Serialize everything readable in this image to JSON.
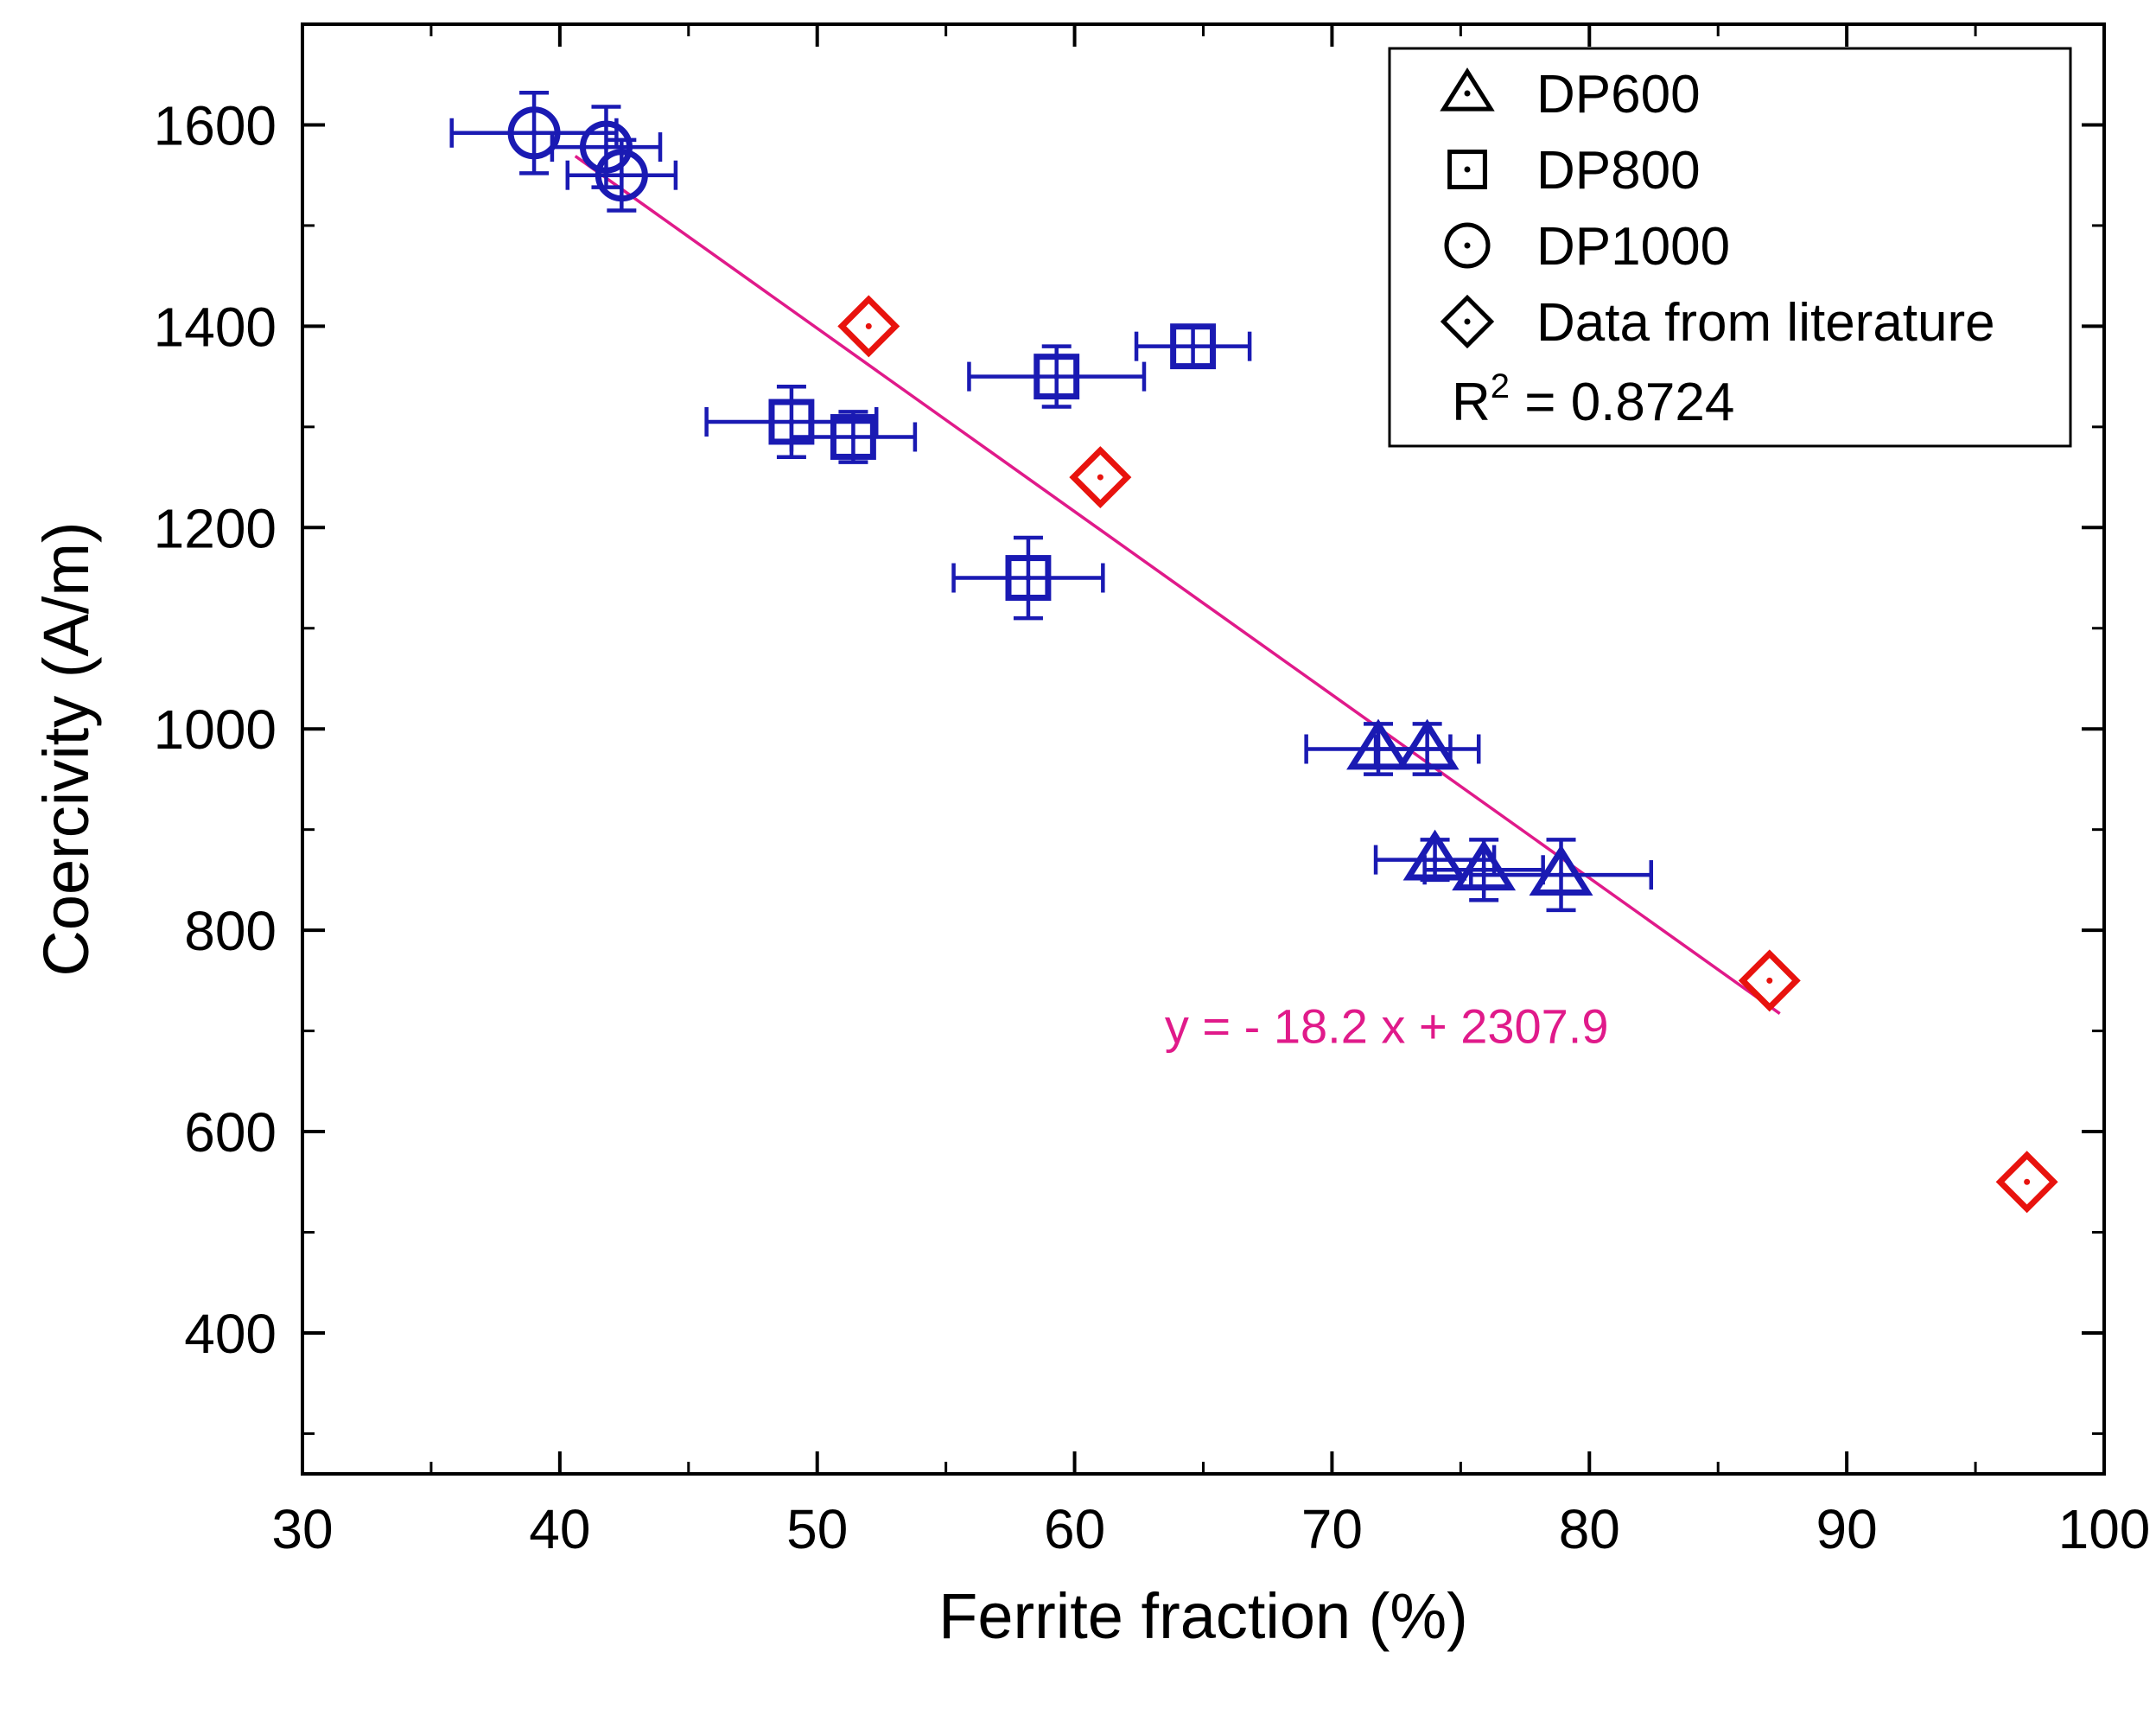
{
  "chart_data": {
    "type": "scatter",
    "title": "",
    "xlabel": "Ferrite fraction (%)",
    "ylabel": "Coercivity (A/m)",
    "xlim": [
      30,
      100
    ],
    "ylim": [
      260,
      1700
    ],
    "xticks": [
      30,
      40,
      50,
      60,
      70,
      80,
      90,
      100
    ],
    "yticks": [
      400,
      600,
      800,
      1000,
      1200,
      1400,
      1600
    ],
    "grid": false,
    "legend_position": "top-right",
    "series": [
      {
        "name": "DP600",
        "marker": "triangle",
        "color": "#1a1ab3",
        "points": [
          {
            "x": 71.8,
            "y": 980,
            "xerr": 2.8,
            "yerr": 25
          },
          {
            "x": 73.7,
            "y": 980,
            "xerr": 2.0,
            "yerr": 25
          },
          {
            "x": 74.0,
            "y": 870,
            "xerr": 2.3,
            "yerr": 20
          },
          {
            "x": 75.9,
            "y": 860,
            "xerr": 2.3,
            "yerr": 30
          },
          {
            "x": 78.9,
            "y": 855,
            "xerr": 3.5,
            "yerr": 35
          }
        ]
      },
      {
        "name": "DP800",
        "marker": "square",
        "color": "#1a1ab3",
        "points": [
          {
            "x": 49.0,
            "y": 1305,
            "xerr": 3.3,
            "yerr": 35
          },
          {
            "x": 51.4,
            "y": 1290,
            "xerr": 2.4,
            "yerr": 25
          },
          {
            "x": 59.3,
            "y": 1350,
            "xerr": 3.4,
            "yerr": 30
          },
          {
            "x": 64.6,
            "y": 1380,
            "xerr": 2.2,
            "yerr": 20
          },
          {
            "x": 58.2,
            "y": 1150,
            "xerr": 2.9,
            "yerr": 40
          }
        ]
      },
      {
        "name": "DP1000",
        "marker": "circle",
        "color": "#1a1ab3",
        "points": [
          {
            "x": 39.0,
            "y": 1592,
            "xerr": 3.2,
            "yerr": 40
          },
          {
            "x": 41.8,
            "y": 1578,
            "xerr": 2.1,
            "yerr": 40
          },
          {
            "x": 42.4,
            "y": 1550,
            "xerr": 2.1,
            "yerr": 35
          }
        ]
      },
      {
        "name": "Data from literature",
        "marker": "diamond",
        "color": "#e8130e",
        "points": [
          {
            "x": 52.0,
            "y": 1400
          },
          {
            "x": 61.0,
            "y": 1250
          },
          {
            "x": 87.0,
            "y": 750
          },
          {
            "x": 97.0,
            "y": 550
          }
        ]
      }
    ],
    "fit": {
      "equation": "y = - 18.2 x + 2307.9",
      "slope": -18.2,
      "intercept": 2307.9,
      "x_range": [
        40.6,
        87.4
      ],
      "r2_label": "R",
      "r2_sup": "2",
      "r2_value": " = 0.8724",
      "color": "#e01a8a"
    }
  }
}
